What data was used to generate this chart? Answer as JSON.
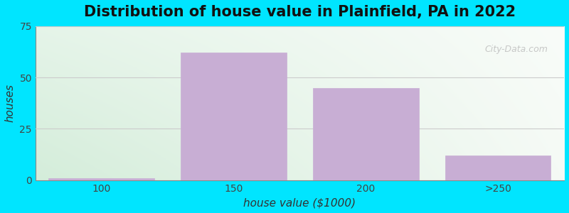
{
  "title": "Distribution of house value in Plainfield, PA in 2022",
  "xlabel": "house value ($1000)",
  "ylabel": "houses",
  "categories": [
    "100",
    "150",
    "200",
    ">250"
  ],
  "values": [
    1,
    62,
    45,
    12
  ],
  "bar_color": "#c8aed4",
  "bar_edgecolor": "#c8aed4",
  "ylim": [
    0,
    75
  ],
  "yticks": [
    0,
    25,
    50,
    75
  ],
  "fig_bgcolor": "#00e5ff",
  "grid_color": "#cccccc",
  "title_fontsize": 15,
  "label_fontsize": 11,
  "tick_fontsize": 10,
  "bar_width": 0.8,
  "watermark_text": "City-Data.com"
}
